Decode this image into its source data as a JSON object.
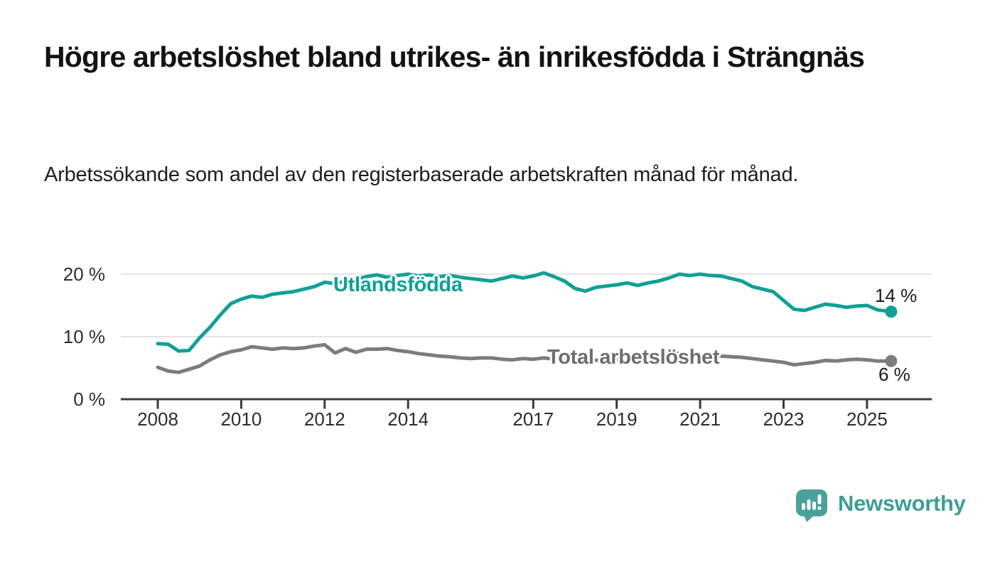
{
  "page": {
    "title": "Högre arbetslöshet bland utrikes- än inrikesfödda i Strängnäs",
    "subtitle": "Arbetssökande som andel av den registerbaserade arbetskraften månad för månad."
  },
  "branding": {
    "name": "Newsworthy",
    "icon": "bar-chart-speech-bubble",
    "icon_color": "#4aa19a",
    "text_color": "#3f9d96"
  },
  "chart_data": {
    "type": "line",
    "title": "Högre arbetslöshet bland utrikes- än inrikesfödda i Strängnäs",
    "xlabel": "",
    "ylabel": "",
    "y_unit": "%",
    "ylim": [
      0,
      22
    ],
    "x_range": [
      2008,
      2025.58
    ],
    "grid": "horizontal",
    "grid_color": "#dadada",
    "axis_color": "#3b3b3b",
    "legend_position": "inline-labels",
    "y_ticks": [
      {
        "value": 0,
        "label": "0 %"
      },
      {
        "value": 10,
        "label": "10 %"
      },
      {
        "value": 20,
        "label": "20 %"
      }
    ],
    "x_ticks": [
      {
        "value": 2008,
        "label": "2008"
      },
      {
        "value": 2010,
        "label": "2010"
      },
      {
        "value": 2012,
        "label": "2012"
      },
      {
        "value": 2014,
        "label": "2014"
      },
      {
        "value": 2017,
        "label": "2017"
      },
      {
        "value": 2019,
        "label": "2019"
      },
      {
        "value": 2021,
        "label": "2021"
      },
      {
        "value": 2023,
        "label": "2023"
      },
      {
        "value": 2025,
        "label": "2025"
      }
    ],
    "series": [
      {
        "name": "Utlandsfödda",
        "color": "#10a095",
        "label_color": "#10a095",
        "end_label": "14 %",
        "end_value": 14,
        "x": [
          2008,
          2008.25,
          2008.5,
          2008.75,
          2009,
          2009.25,
          2009.5,
          2009.75,
          2010,
          2010.25,
          2010.5,
          2010.75,
          2011,
          2011.25,
          2011.5,
          2011.75,
          2012,
          2012.25,
          2012.5,
          2012.75,
          2013,
          2013.25,
          2013.5,
          2013.75,
          2014,
          2014.25,
          2014.5,
          2014.75,
          2015,
          2015.25,
          2015.5,
          2015.75,
          2016,
          2016.25,
          2016.5,
          2016.75,
          2017,
          2017.25,
          2017.5,
          2017.75,
          2018,
          2018.25,
          2018.5,
          2018.75,
          2019,
          2019.25,
          2019.5,
          2019.75,
          2020,
          2020.25,
          2020.5,
          2020.75,
          2021,
          2021.25,
          2021.5,
          2021.75,
          2022,
          2022.25,
          2022.5,
          2022.75,
          2023,
          2023.25,
          2023.5,
          2023.75,
          2024,
          2024.25,
          2024.5,
          2024.75,
          2025,
          2025.25,
          2025.58
        ],
        "values": [
          8.9,
          8.8,
          7.7,
          7.8,
          9.8,
          11.5,
          13.5,
          15.3,
          16.0,
          16.5,
          16.3,
          16.8,
          17.0,
          17.2,
          17.6,
          18.0,
          18.7,
          18.5,
          18.9,
          19.2,
          19.6,
          19.9,
          19.5,
          19.8,
          20.0,
          19.7,
          19.9,
          19.6,
          19.8,
          19.5,
          19.3,
          19.1,
          18.9,
          19.3,
          19.7,
          19.4,
          19.7,
          20.2,
          19.6,
          18.9,
          17.7,
          17.3,
          17.9,
          18.1,
          18.3,
          18.6,
          18.2,
          18.6,
          18.9,
          19.4,
          20.0,
          19.8,
          20.0,
          19.8,
          19.7,
          19.3,
          18.9,
          18.0,
          17.6,
          17.2,
          15.8,
          14.4,
          14.2,
          14.7,
          15.2,
          15.0,
          14.7,
          14.9,
          15.0,
          14.3,
          14.0
        ]
      },
      {
        "name": "Total arbetslöshet",
        "color": "#7b7b80",
        "label_color": "#6d6d72",
        "end_label": "6 %",
        "end_value": 6,
        "x": [
          2008,
          2008.25,
          2008.5,
          2008.75,
          2009,
          2009.25,
          2009.5,
          2009.75,
          2010,
          2010.25,
          2010.5,
          2010.75,
          2011,
          2011.25,
          2011.5,
          2011.75,
          2012,
          2012.25,
          2012.5,
          2012.75,
          2013,
          2013.25,
          2013.5,
          2013.75,
          2014,
          2014.25,
          2014.5,
          2014.75,
          2015,
          2015.25,
          2015.5,
          2015.75,
          2016,
          2016.25,
          2016.5,
          2016.75,
          2017,
          2017.25,
          2017.5,
          2017.75,
          2018,
          2018.25,
          2018.5,
          2018.75,
          2019,
          2019.25,
          2019.5,
          2019.75,
          2020,
          2020.25,
          2020.5,
          2020.75,
          2021,
          2021.25,
          2021.5,
          2021.75,
          2022,
          2022.25,
          2022.5,
          2022.75,
          2023,
          2023.25,
          2023.5,
          2023.75,
          2024,
          2024.25,
          2024.5,
          2024.75,
          2025,
          2025.25,
          2025.58
        ],
        "values": [
          5.1,
          4.5,
          4.3,
          4.8,
          5.3,
          6.3,
          7.1,
          7.6,
          7.9,
          8.4,
          8.2,
          8.0,
          8.2,
          8.1,
          8.2,
          8.5,
          8.7,
          7.4,
          8.1,
          7.5,
          8.0,
          8.0,
          8.1,
          7.8,
          7.6,
          7.3,
          7.1,
          6.9,
          6.8,
          6.6,
          6.5,
          6.6,
          6.6,
          6.4,
          6.3,
          6.5,
          6.4,
          6.6,
          6.4,
          6.3,
          6.2,
          6.3,
          6.2,
          6.4,
          6.3,
          6.5,
          6.6,
          6.8,
          7.0,
          7.4,
          7.3,
          7.2,
          7.1,
          7.0,
          6.9,
          6.8,
          6.7,
          6.5,
          6.3,
          6.1,
          5.9,
          5.5,
          5.7,
          5.9,
          6.2,
          6.1,
          6.3,
          6.4,
          6.3,
          6.1,
          6.1
        ]
      }
    ]
  }
}
